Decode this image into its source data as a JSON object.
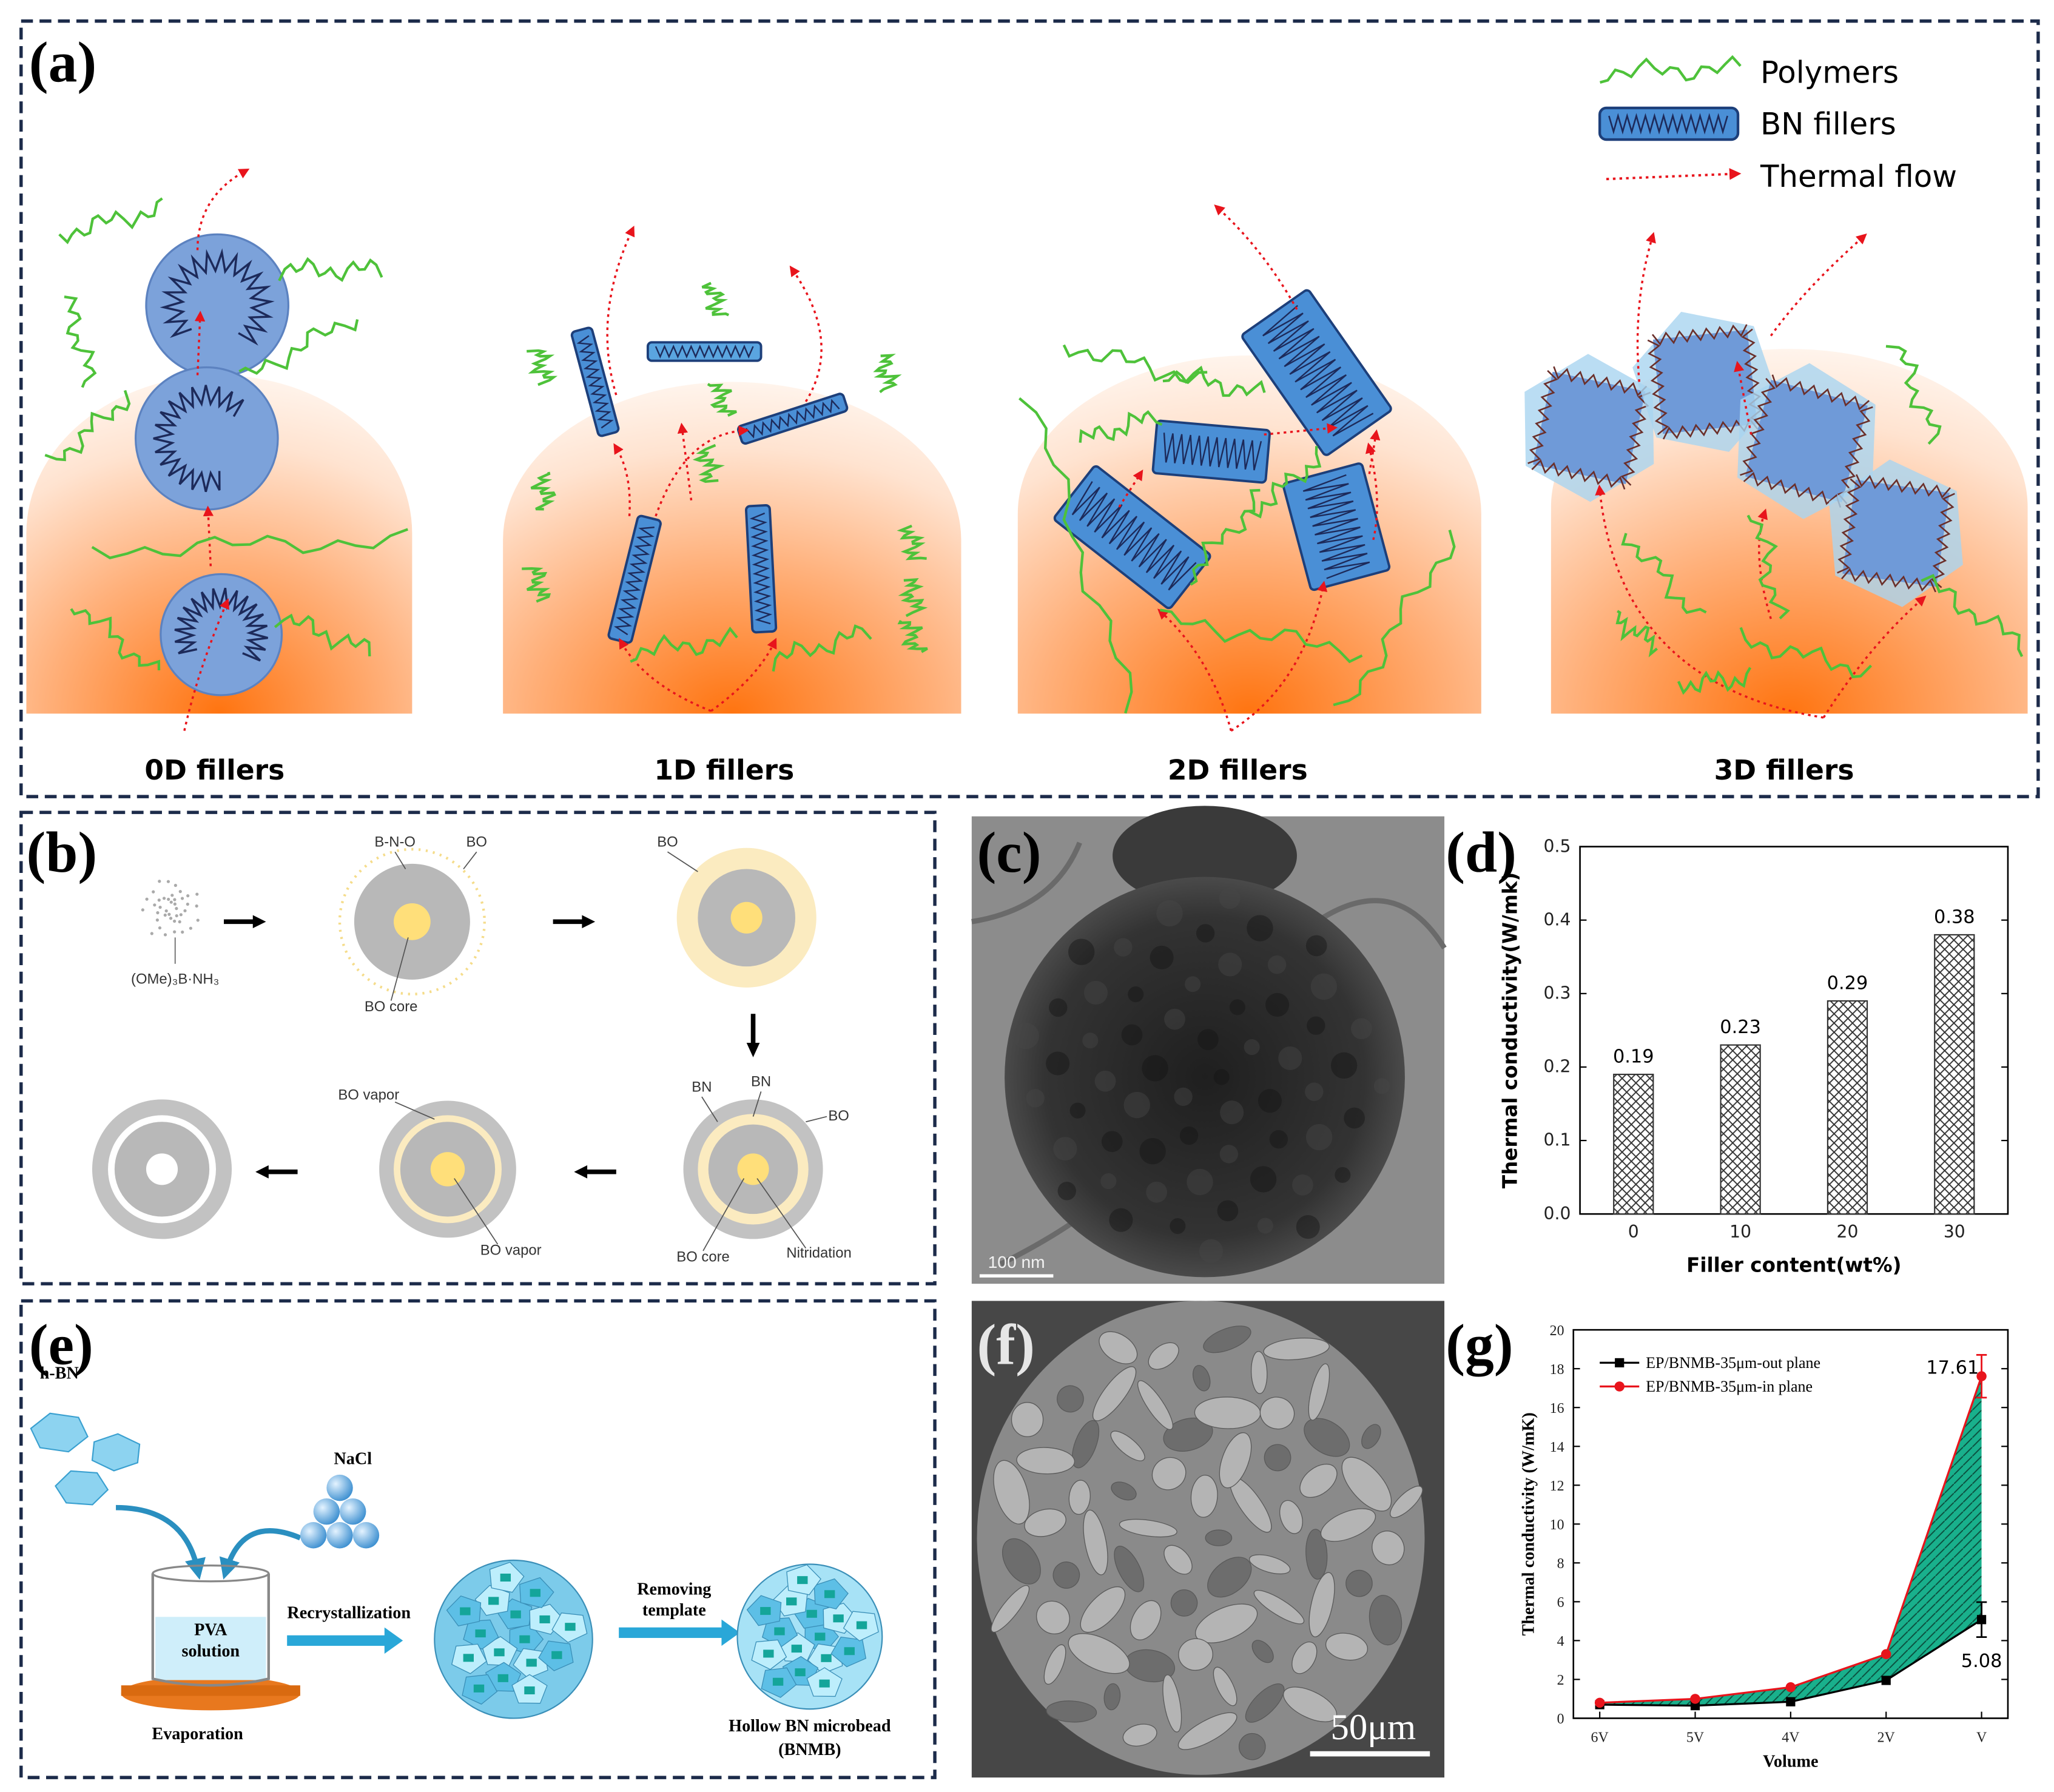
{
  "panel_labels": [
    "(a)",
    "(b)",
    "(c)",
    "(d)",
    "(e)",
    "(f)",
    "(g)"
  ],
  "panel_a": {
    "legend": [
      "Polymers",
      "BN fillers",
      "Thermal flow"
    ],
    "captions": [
      "0D fillers",
      "1D fillers",
      "2D fillers",
      "3D fillers"
    ]
  },
  "panel_b": {
    "precursor": "(OMe)₃B·NH₃",
    "stage1": [
      "B-N-O",
      "BO",
      "BO core"
    ],
    "stage2": [
      "BO"
    ],
    "stage3": [
      "BN",
      "BN",
      "BO",
      "BO core",
      "Nitridation"
    ],
    "stage4": [
      "BO vapor",
      "BO vapor"
    ]
  },
  "panel_c": {
    "scale_bar": "100 nm"
  },
  "panel_e": {
    "material1": "h-BN",
    "material2": "NaCl",
    "beaker": [
      "PVA",
      "solution"
    ],
    "step1": "Recrystallization",
    "step2": [
      "Removing",
      "template"
    ],
    "platform": "Evaporation",
    "product": [
      "Hollow BN microbead",
      "(BNMB)"
    ]
  },
  "panel_f": {
    "scale_bar": "50μm"
  },
  "chart_data": [
    {
      "type": "bar",
      "categories": [
        "0",
        "10",
        "20",
        "30"
      ],
      "values": [
        0.19,
        0.23,
        0.29,
        0.38
      ],
      "color": "#333333",
      "ylim": [
        0,
        0.5
      ],
      "yticks": [
        {
          "value": 0,
          "label": "0.0"
        },
        0.1,
        0.2,
        0.3,
        0.4,
        0.5
      ],
      "xlabel": "Filler content(wt%)",
      "ylabel": "Thermal conductivity(W/mk)"
    },
    {
      "type": "line",
      "categories": [
        "6V",
        "5V",
        "4V",
        "2V",
        "V"
      ],
      "series": [
        {
          "name": "EP/BNMB-35μm-out plane",
          "color": "#000000",
          "marker": "square",
          "values": [
            0.7,
            0.65,
            0.85,
            1.95,
            5.08
          ],
          "errors": [
            null,
            null,
            null,
            null,
            0.9
          ],
          "value_labels": [
            null,
            null,
            null,
            null,
            "5.08"
          ]
        },
        {
          "name": "EP/BNMB-35μm-in plane",
          "color": "#e8141c",
          "marker": "circle",
          "values": [
            0.8,
            1.0,
            1.6,
            3.3,
            17.61
          ],
          "errors": [
            null,
            null,
            null,
            null,
            1.1
          ],
          "value_labels": [
            null,
            null,
            null,
            null,
            "17.61"
          ]
        }
      ],
      "fill_between_color": "#19b08c",
      "ylim": [
        0,
        20
      ],
      "yticks": [
        0,
        2,
        4,
        6,
        8,
        10,
        12,
        14,
        16,
        18,
        20
      ],
      "xlabel": "Volume",
      "ylabel": "Thermal conductivity (W/mK)"
    }
  ]
}
